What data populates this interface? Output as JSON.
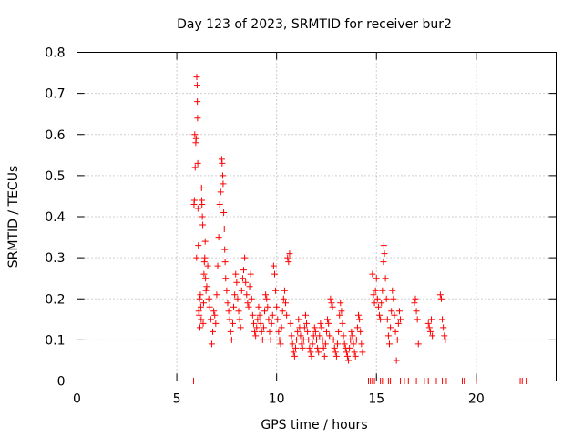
{
  "chart_data": {
    "type": "scatter",
    "title": "Day 123 of 2023, SRMTID for receiver bur2",
    "xlabel": "GPS time / hours",
    "ylabel": "SRMTID / TECUs",
    "xlim": [
      0,
      24
    ],
    "ylim": [
      0,
      0.8
    ],
    "xticks": [
      0,
      5,
      10,
      15,
      20
    ],
    "yticks": [
      0,
      0.1,
      0.2,
      0.3,
      0.4,
      0.5,
      0.6,
      0.7,
      0.8
    ],
    "xtick_labels": [
      "0",
      "5",
      "10",
      "15",
      "20"
    ],
    "ytick_labels": [
      "0",
      "0.1",
      "0.2",
      "0.3",
      "0.4",
      "0.5",
      "0.6",
      "0.7",
      "0.8"
    ],
    "grid": true,
    "marker": "+",
    "color": "#ff0000",
    "series": [
      {
        "name": "SRMTID",
        "points": [
          [
            5.86,
            0.43
          ],
          [
            5.88,
            0.44
          ],
          [
            5.9,
            0.6
          ],
          [
            5.92,
            0.52
          ],
          [
            5.95,
            0.58
          ],
          [
            5.97,
            0.59
          ],
          [
            5.99,
            0.3
          ],
          [
            6.0,
            0.74
          ],
          [
            6.02,
            0.72
          ],
          [
            6.03,
            0.68
          ],
          [
            6.04,
            0.64
          ],
          [
            6.05,
            0.53
          ],
          [
            6.06,
            0.42
          ],
          [
            6.08,
            0.33
          ],
          [
            6.1,
            0.17
          ],
          [
            6.12,
            0.16
          ],
          [
            6.14,
            0.2
          ],
          [
            6.16,
            0.13
          ],
          [
            6.18,
            0.21
          ],
          [
            6.2,
            0.18
          ],
          [
            6.22,
            0.15
          ],
          [
            6.24,
            0.47
          ],
          [
            6.25,
            0.44
          ],
          [
            6.26,
            0.43
          ],
          [
            6.28,
            0.4
          ],
          [
            6.3,
            0.38
          ],
          [
            6.32,
            0.14
          ],
          [
            6.34,
            0.19
          ],
          [
            6.36,
            0.26
          ],
          [
            6.38,
            0.29
          ],
          [
            6.4,
            0.3
          ],
          [
            6.42,
            0.34
          ],
          [
            6.44,
            0.25
          ],
          [
            6.46,
            0.22
          ],
          [
            6.5,
            0.23
          ],
          [
            6.55,
            0.28
          ],
          [
            6.6,
            0.2
          ],
          [
            6.65,
            0.18
          ],
          [
            6.7,
            0.15
          ],
          [
            6.75,
            0.09
          ],
          [
            6.8,
            0.12
          ],
          [
            6.85,
            0.17
          ],
          [
            6.9,
            0.16
          ],
          [
            6.95,
            0.14
          ],
          [
            7.0,
            0.21
          ],
          [
            7.05,
            0.28
          ],
          [
            7.1,
            0.35
          ],
          [
            7.15,
            0.43
          ],
          [
            7.2,
            0.46
          ],
          [
            7.25,
            0.54
          ],
          [
            7.27,
            0.53
          ],
          [
            7.3,
            0.5
          ],
          [
            7.32,
            0.48
          ],
          [
            7.35,
            0.41
          ],
          [
            7.38,
            0.37
          ],
          [
            7.4,
            0.32
          ],
          [
            7.42,
            0.29
          ],
          [
            7.45,
            0.25
          ],
          [
            7.5,
            0.22
          ],
          [
            7.55,
            0.19
          ],
          [
            7.6,
            0.17
          ],
          [
            7.65,
            0.15
          ],
          [
            7.7,
            0.12
          ],
          [
            7.75,
            0.1
          ],
          [
            7.8,
            0.14
          ],
          [
            7.85,
            0.18
          ],
          [
            7.9,
            0.21
          ],
          [
            7.95,
            0.26
          ],
          [
            8.0,
            0.24
          ],
          [
            8.05,
            0.2
          ],
          [
            8.1,
            0.17
          ],
          [
            8.15,
            0.15
          ],
          [
            8.2,
            0.13
          ],
          [
            8.25,
            0.22
          ],
          [
            8.3,
            0.25
          ],
          [
            8.35,
            0.27
          ],
          [
            8.4,
            0.3
          ],
          [
            8.45,
            0.24
          ],
          [
            8.5,
            0.21
          ],
          [
            8.55,
            0.19
          ],
          [
            8.6,
            0.18
          ],
          [
            8.65,
            0.23
          ],
          [
            8.7,
            0.26
          ],
          [
            8.75,
            0.2
          ],
          [
            8.8,
            0.16
          ],
          [
            8.85,
            0.14
          ],
          [
            8.9,
            0.12
          ],
          [
            8.95,
            0.11
          ],
          [
            9.0,
            0.13
          ],
          [
            9.05,
            0.15
          ],
          [
            9.1,
            0.18
          ],
          [
            9.15,
            0.16
          ],
          [
            9.2,
            0.14
          ],
          [
            9.25,
            0.12
          ],
          [
            9.3,
            0.1
          ],
          [
            9.35,
            0.13
          ],
          [
            9.4,
            0.17
          ],
          [
            9.45,
            0.21
          ],
          [
            9.5,
            0.2
          ],
          [
            9.55,
            0.18
          ],
          [
            9.6,
            0.15
          ],
          [
            9.65,
            0.12
          ],
          [
            9.7,
            0.1
          ],
          [
            9.75,
            0.14
          ],
          [
            9.8,
            0.16
          ],
          [
            9.85,
            0.28
          ],
          [
            9.9,
            0.26
          ],
          [
            9.95,
            0.22
          ],
          [
            10.0,
            0.18
          ],
          [
            10.05,
            0.15
          ],
          [
            10.1,
            0.12
          ],
          [
            10.15,
            0.1
          ],
          [
            10.2,
            0.09
          ],
          [
            10.25,
            0.13
          ],
          [
            10.3,
            0.17
          ],
          [
            10.35,
            0.2
          ],
          [
            10.4,
            0.22
          ],
          [
            10.45,
            0.19
          ],
          [
            10.5,
            0.16
          ],
          [
            10.55,
            0.3
          ],
          [
            10.6,
            0.29
          ],
          [
            10.65,
            0.31
          ],
          [
            10.7,
            0.14
          ],
          [
            10.75,
            0.11
          ],
          [
            10.8,
            0.09
          ],
          [
            10.85,
            0.07
          ],
          [
            10.9,
            0.06
          ],
          [
            10.95,
            0.08
          ],
          [
            11.0,
            0.1
          ],
          [
            11.05,
            0.12
          ],
          [
            11.1,
            0.15
          ],
          [
            11.15,
            0.13
          ],
          [
            11.2,
            0.11
          ],
          [
            11.25,
            0.09
          ],
          [
            11.3,
            0.08
          ],
          [
            11.35,
            0.1
          ],
          [
            11.4,
            0.13
          ],
          [
            11.45,
            0.16
          ],
          [
            11.5,
            0.14
          ],
          [
            11.55,
            0.12
          ],
          [
            11.6,
            0.1
          ],
          [
            11.65,
            0.08
          ],
          [
            11.7,
            0.07
          ],
          [
            11.75,
            0.06
          ],
          [
            11.8,
            0.09
          ],
          [
            11.85,
            0.11
          ],
          [
            11.9,
            0.13
          ],
          [
            11.95,
            0.12
          ],
          [
            12.0,
            0.1
          ],
          [
            12.05,
            0.08
          ],
          [
            12.1,
            0.07
          ],
          [
            12.15,
            0.11
          ],
          [
            12.2,
            0.14
          ],
          [
            12.25,
            0.13
          ],
          [
            12.3,
            0.1
          ],
          [
            12.35,
            0.08
          ],
          [
            12.4,
            0.06
          ],
          [
            12.45,
            0.09
          ],
          [
            12.5,
            0.12
          ],
          [
            12.55,
            0.15
          ],
          [
            12.6,
            0.14
          ],
          [
            12.65,
            0.11
          ],
          [
            12.7,
            0.2
          ],
          [
            12.75,
            0.19
          ],
          [
            12.8,
            0.18
          ],
          [
            12.85,
            0.1
          ],
          [
            12.9,
            0.08
          ],
          [
            12.95,
            0.07
          ],
          [
            13.0,
            0.06
          ],
          [
            13.05,
            0.09
          ],
          [
            13.1,
            0.12
          ],
          [
            13.15,
            0.16
          ],
          [
            13.2,
            0.19
          ],
          [
            13.25,
            0.17
          ],
          [
            13.3,
            0.14
          ],
          [
            13.35,
            0.11
          ],
          [
            13.4,
            0.09
          ],
          [
            13.45,
            0.08
          ],
          [
            13.5,
            0.07
          ],
          [
            13.55,
            0.06
          ],
          [
            13.6,
            0.05
          ],
          [
            13.65,
            0.08
          ],
          [
            13.7,
            0.1
          ],
          [
            13.75,
            0.12
          ],
          [
            13.8,
            0.11
          ],
          [
            13.85,
            0.09
          ],
          [
            13.9,
            0.07
          ],
          [
            13.95,
            0.06
          ],
          [
            14.0,
            0.1
          ],
          [
            14.05,
            0.13
          ],
          [
            14.1,
            0.16
          ],
          [
            14.15,
            0.15
          ],
          [
            14.2,
            0.12
          ],
          [
            14.25,
            0.09
          ],
          [
            14.3,
            0.07
          ],
          [
            14.8,
            0.26
          ],
          [
            14.85,
            0.21
          ],
          [
            14.9,
            0.19
          ],
          [
            14.95,
            0.22
          ],
          [
            15.0,
            0.25
          ],
          [
            15.05,
            0.2
          ],
          [
            15.1,
            0.18
          ],
          [
            15.15,
            0.16
          ],
          [
            15.2,
            0.15
          ],
          [
            15.25,
            0.19
          ],
          [
            15.3,
            0.22
          ],
          [
            15.35,
            0.29
          ],
          [
            15.37,
            0.33
          ],
          [
            15.4,
            0.31
          ],
          [
            15.45,
            0.25
          ],
          [
            15.5,
            0.2
          ],
          [
            15.55,
            0.15
          ],
          [
            15.6,
            0.11
          ],
          [
            15.65,
            0.09
          ],
          [
            15.7,
            0.13
          ],
          [
            15.75,
            0.17
          ],
          [
            15.8,
            0.22
          ],
          [
            15.85,
            0.2
          ],
          [
            15.9,
            0.16
          ],
          [
            15.95,
            0.12
          ],
          [
            16.0,
            0.05
          ],
          [
            16.05,
            0.1
          ],
          [
            16.1,
            0.14
          ],
          [
            16.15,
            0.17
          ],
          [
            16.2,
            0.15
          ],
          [
            16.9,
            0.19
          ],
          [
            16.95,
            0.2
          ],
          [
            17.0,
            0.17
          ],
          [
            17.05,
            0.15
          ],
          [
            17.1,
            0.09
          ],
          [
            17.6,
            0.14
          ],
          [
            17.65,
            0.13
          ],
          [
            17.7,
            0.12
          ],
          [
            17.75,
            0.15
          ],
          [
            17.8,
            0.11
          ],
          [
            18.2,
            0.21
          ],
          [
            18.25,
            0.2
          ],
          [
            18.3,
            0.15
          ],
          [
            18.35,
            0.13
          ],
          [
            18.4,
            0.11
          ],
          [
            18.45,
            0.1
          ],
          [
            5.84,
            0.0
          ],
          [
            14.6,
            0.0
          ],
          [
            14.7,
            0.0
          ],
          [
            14.8,
            0.0
          ],
          [
            14.9,
            0.0
          ],
          [
            15.2,
            0.0
          ],
          [
            15.3,
            0.0
          ],
          [
            15.6,
            0.0
          ],
          [
            15.7,
            0.0
          ],
          [
            16.2,
            0.0
          ],
          [
            16.4,
            0.0
          ],
          [
            16.6,
            0.0
          ],
          [
            17.0,
            0.0
          ],
          [
            17.4,
            0.0
          ],
          [
            17.6,
            0.0
          ],
          [
            18.0,
            0.0
          ],
          [
            18.3,
            0.0
          ],
          [
            18.5,
            0.0
          ],
          [
            19.3,
            0.0
          ],
          [
            19.4,
            0.0
          ],
          [
            20.0,
            0.0
          ],
          [
            22.2,
            0.0
          ],
          [
            22.3,
            0.0
          ],
          [
            22.5,
            0.0
          ]
        ]
      }
    ]
  }
}
